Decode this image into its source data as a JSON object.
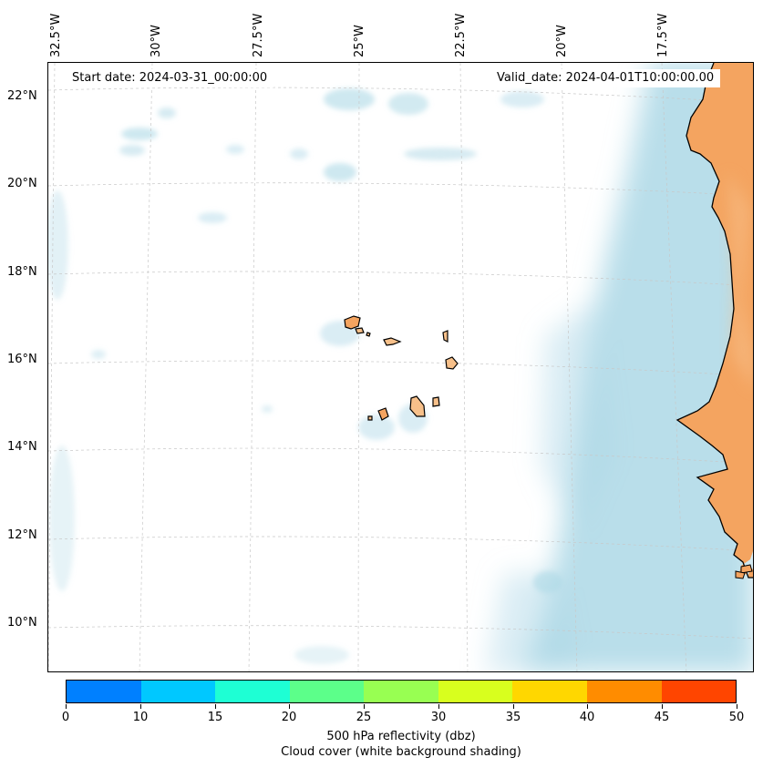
{
  "map": {
    "start_date": "Start date: 2024-03-31_00:00:00",
    "valid_date": "Valid_date: 2024-04-01T10:00:00.00",
    "lon_labels": [
      "32.5°W",
      "30°W",
      "27.5°W",
      "25°W",
      "22.5°W",
      "20°W",
      "17.5°W"
    ],
    "lat_labels": [
      "22°N",
      "20°N",
      "18°N",
      "16°N",
      "14°N",
      "12°N",
      "10°N"
    ],
    "colors": {
      "land": "#f4a460",
      "land_light": "#f7c08a",
      "cloud": "#add8e6",
      "gridline": "#c8c8c8",
      "coastline": "#000000"
    }
  },
  "colorbar": {
    "ticks": [
      "0",
      "10",
      "15",
      "20",
      "25",
      "30",
      "35",
      "40",
      "45",
      "50"
    ],
    "colors": [
      "#0080ff",
      "#00c8ff",
      "#1effd4",
      "#5cff8a",
      "#98ff52",
      "#d8ff1e",
      "#ffd700",
      "#ff8c00",
      "#ff4500"
    ],
    "label_line1": "500 hPa reflectivity (dbz)",
    "label_line2": "Cloud cover (white background shading)"
  }
}
